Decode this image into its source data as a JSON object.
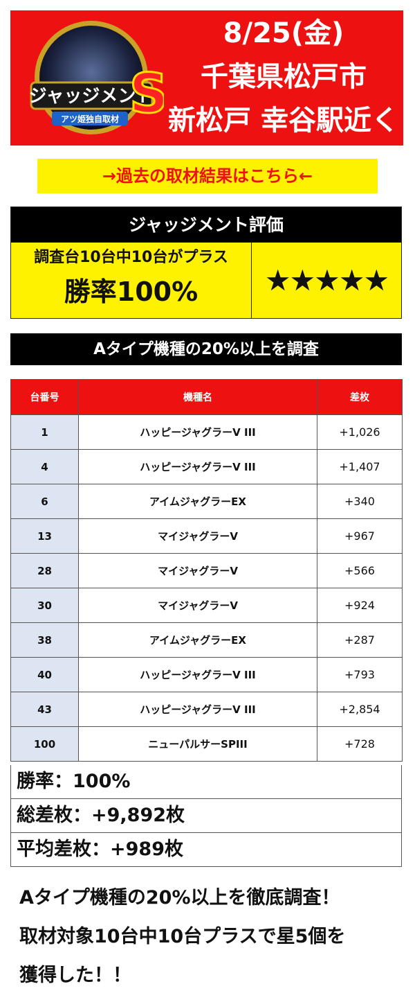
{
  "header": {
    "date": "8/25(金)",
    "location": "千葉県松戸市",
    "store": "新松戸 幸谷駅近く",
    "logo_text": "ジャッジメントS",
    "logo_subtext": "アツ姫独自取材"
  },
  "past_link": "→過去の取材結果はこちら←",
  "evaluation": {
    "title": "ジャッジメント評価",
    "summary_line": "調査台10台中10台がプラス",
    "win_rate": "勝率100%",
    "stars": "★★★★★"
  },
  "survey_title": "Aタイプ機種の20%以上を調査",
  "table": {
    "headers": [
      "台番号",
      "機種名",
      "差枚"
    ],
    "rows": [
      {
        "no": "1",
        "machine": "ハッピージャグラーV III",
        "diff": "+1,026"
      },
      {
        "no": "4",
        "machine": "ハッピージャグラーV III",
        "diff": "+1,407"
      },
      {
        "no": "6",
        "machine": "アイムジャグラーEX",
        "diff": "+340"
      },
      {
        "no": "13",
        "machine": "マイジャグラーV",
        "diff": "+967"
      },
      {
        "no": "28",
        "machine": "マイジャグラーV",
        "diff": "+566"
      },
      {
        "no": "30",
        "machine": "マイジャグラーV",
        "diff": "+924"
      },
      {
        "no": "38",
        "machine": "アイムジャグラーEX",
        "diff": "+287"
      },
      {
        "no": "40",
        "machine": "ハッピージャグラーV III",
        "diff": "+793"
      },
      {
        "no": "43",
        "machine": "ハッピージャグラーV III",
        "diff": "+2,854"
      },
      {
        "no": "100",
        "machine": "ニューパルサーSPIII",
        "diff": "+728"
      }
    ]
  },
  "summary": {
    "win_rate": "勝率：100%",
    "total_diff": "総差枚：+9,892枚",
    "avg_diff": "平均差枚：+989枚"
  },
  "footer": {
    "line1": "Aタイプ機種の20%以上を徹底調査！",
    "line2": "取材対象10台中10台プラスで星5個を",
    "line3": "獲得した！！"
  },
  "colors": {
    "accent_red": "#ee1111",
    "highlight_yellow": "#fff200",
    "number_cell": "#dde5f2"
  }
}
